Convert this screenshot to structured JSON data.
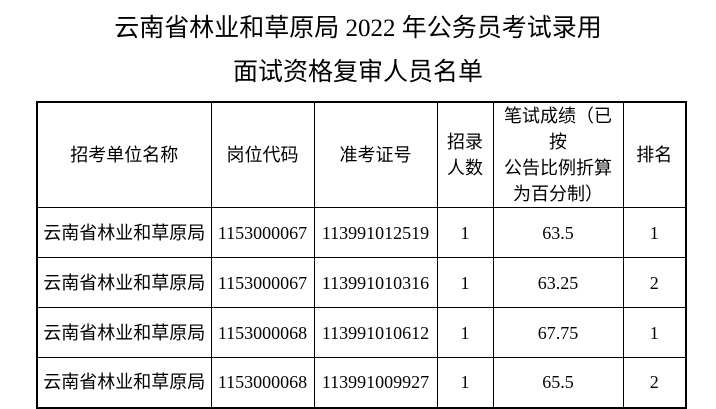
{
  "title": {
    "line1": "云南省林业和草原局 2022 年公务员考试录用",
    "line2": "面试资格复审人员名单"
  },
  "table": {
    "headers": [
      "招考单位名称",
      "岗位代码",
      "准考证号",
      "招录\n人数",
      "笔试成绩（已按\n公告比例折算\n为百分制）",
      "排名"
    ],
    "rows": [
      [
        "云南省林业和草原局",
        "1153000067",
        "113991012519",
        "1",
        "63.5",
        "1"
      ],
      [
        "云南省林业和草原局",
        "1153000067",
        "113991010316",
        "1",
        "63.25",
        "2"
      ],
      [
        "云南省林业和草原局",
        "1153000068",
        "113991010612",
        "1",
        "67.75",
        "1"
      ],
      [
        "云南省林业和草原局",
        "1153000068",
        "113991009927",
        "1",
        "65.5",
        "2"
      ]
    ]
  },
  "colors": {
    "text": "#000000",
    "border": "#000000",
    "background": "#ffffff"
  }
}
